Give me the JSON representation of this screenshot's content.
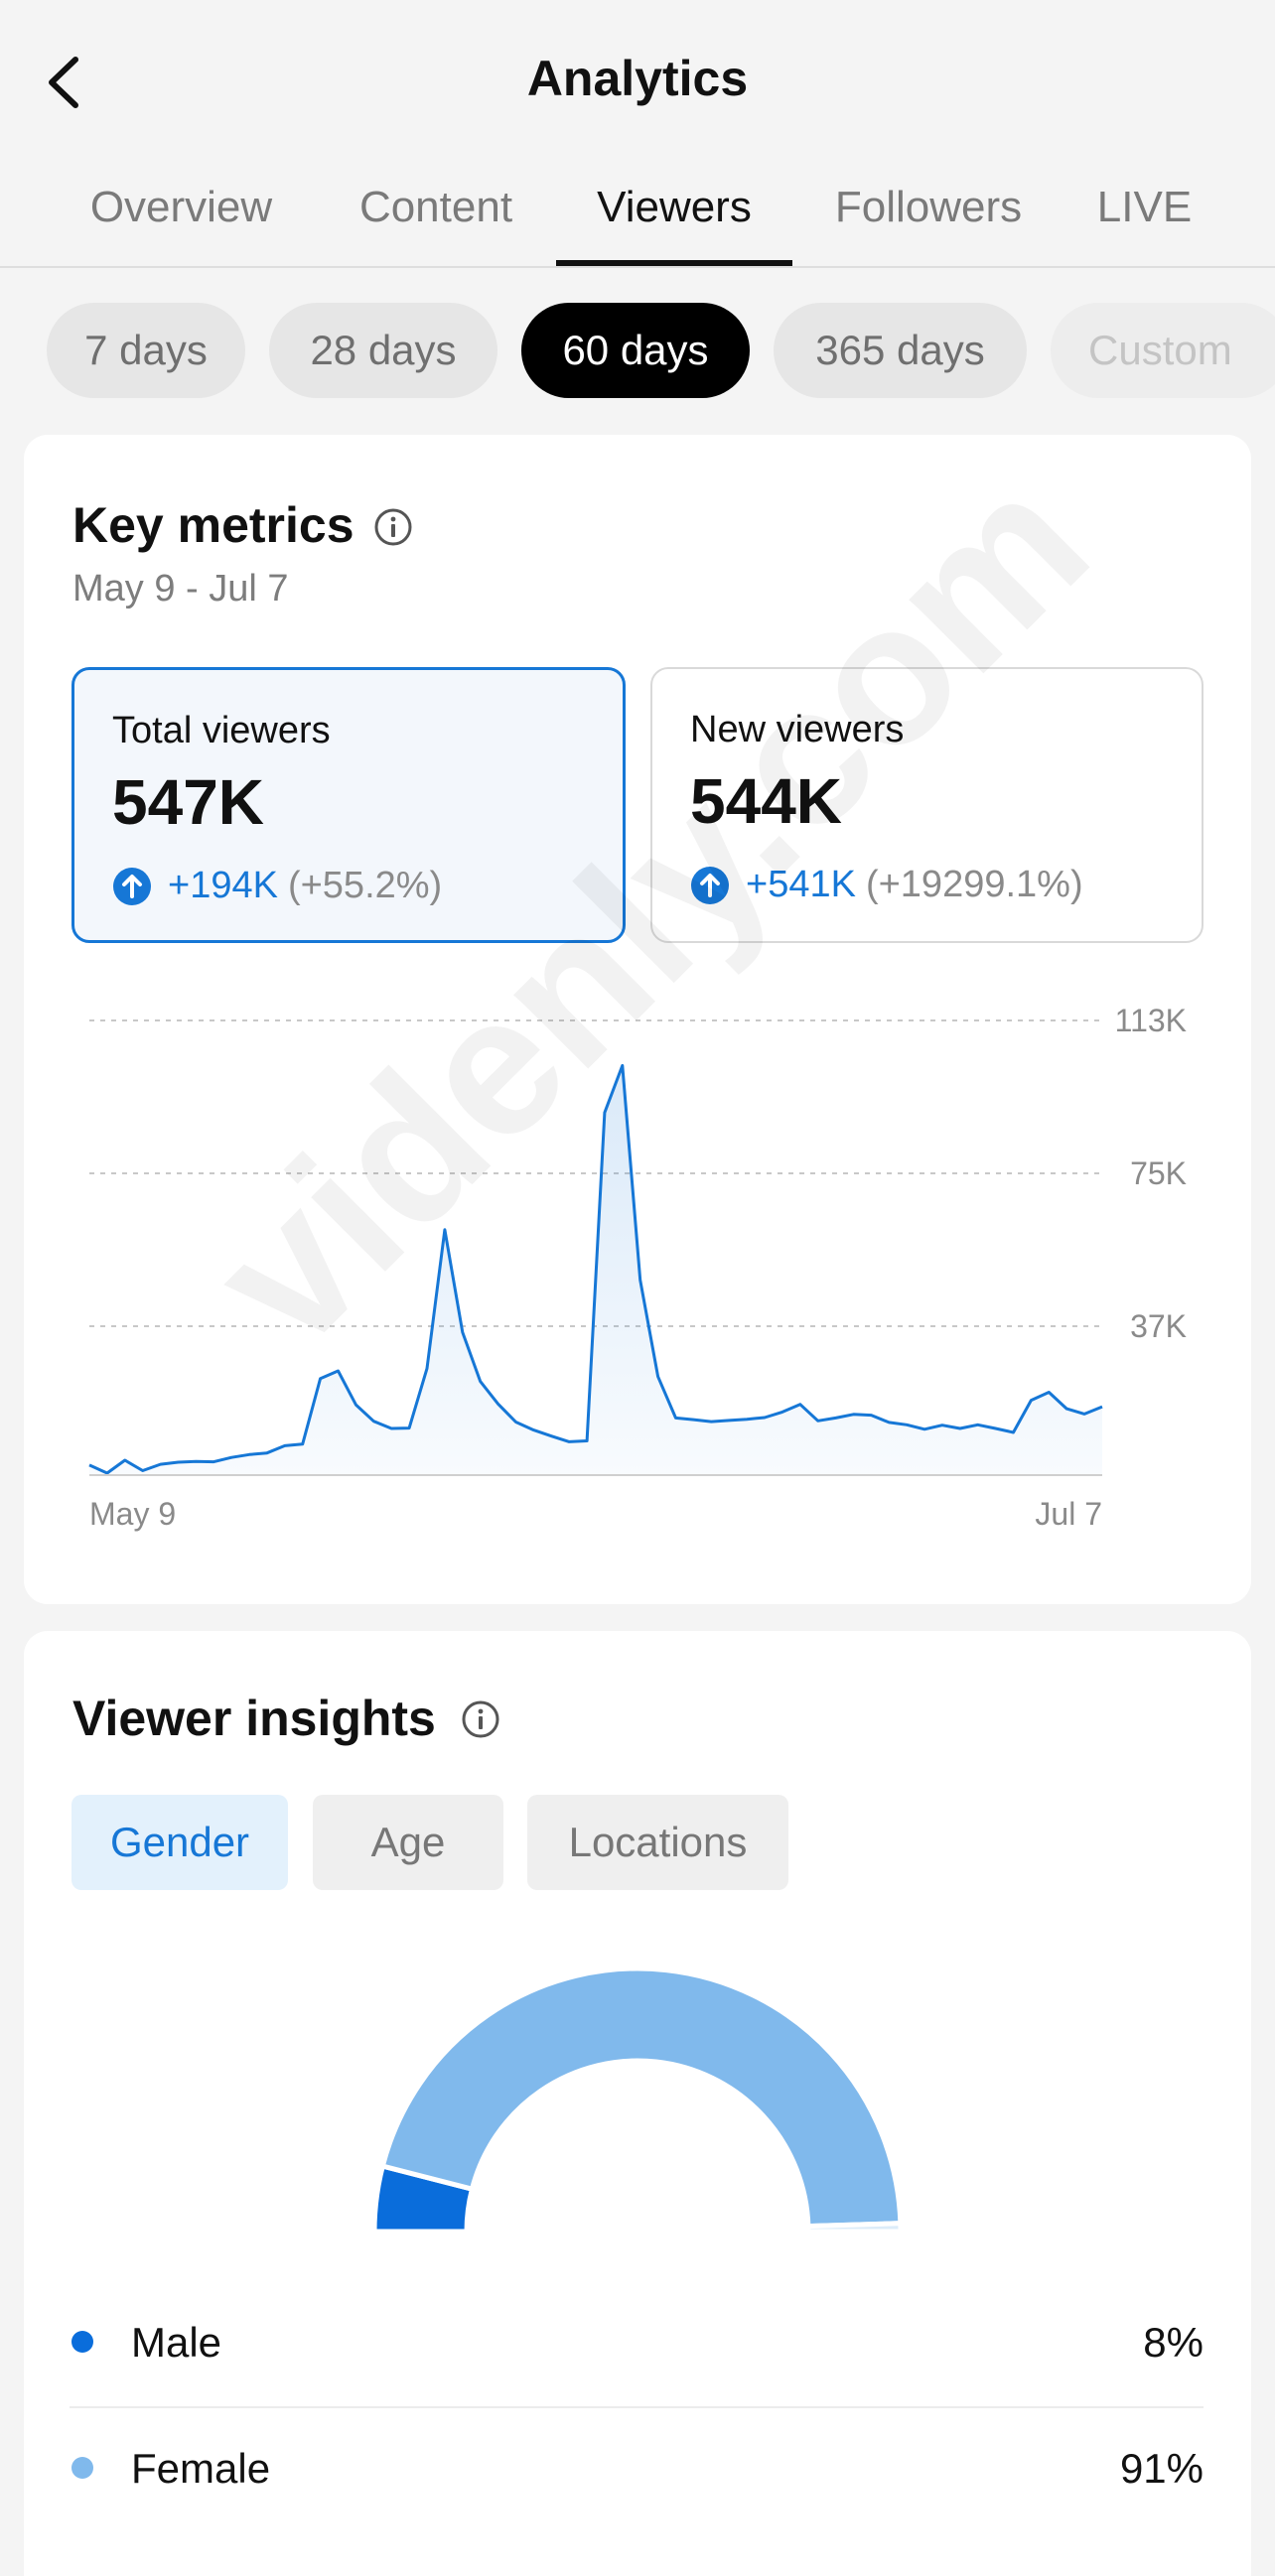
{
  "header": {
    "title": "Analytics",
    "back_icon": "chevron-left-icon"
  },
  "tabs": [
    {
      "label": "Overview",
      "active": false
    },
    {
      "label": "Content",
      "active": false
    },
    {
      "label": "Viewers",
      "active": true
    },
    {
      "label": "Followers",
      "active": false
    },
    {
      "label": "LIVE",
      "active": false
    }
  ],
  "ranges": [
    {
      "label": "7 days",
      "active": false
    },
    {
      "label": "28 days",
      "active": false
    },
    {
      "label": "60 days",
      "active": true
    },
    {
      "label": "365 days",
      "active": false
    },
    {
      "label": "Custom",
      "active": false
    }
  ],
  "key_metrics": {
    "title": "Key metrics",
    "date_range": "May 9 - Jul 7",
    "metrics": [
      {
        "label": "Total viewers",
        "value": "547K",
        "change": "+194K",
        "change_pct": "(+55.2%)",
        "selected": true
      },
      {
        "label": "New viewers",
        "value": "544K",
        "change": "+541K",
        "change_pct": "(+19299.1%)",
        "selected": false
      }
    ]
  },
  "chart_data": {
    "type": "area",
    "series": [
      {
        "values": [
          2500,
          500,
          3700,
          1100,
          2700,
          3200,
          3400,
          3300,
          4400,
          5100,
          5500,
          7300,
          7700,
          24000,
          25900,
          17500,
          13400,
          11600,
          11700,
          26500,
          61000,
          35500,
          23300,
          17700,
          13200,
          11200,
          9700,
          8300,
          8500,
          90100,
          101800,
          48500,
          24500,
          14200,
          13800,
          13300,
          13600,
          13900,
          14300,
          15700,
          17600,
          13500,
          14200,
          15100,
          14900,
          13100,
          12500,
          11400,
          12400,
          11600,
          12500,
          11600,
          10600,
          18600,
          20600,
          16500,
          15200,
          17000
        ]
      }
    ],
    "x_ticks": [
      "May 9",
      "Jul 7"
    ],
    "y_ticks": [
      "37K",
      "75K",
      "113K"
    ],
    "y_tick_values": [
      37000,
      75000,
      113000
    ],
    "ylim": [
      0,
      113000
    ],
    "grid": true,
    "color": "#1677d6"
  },
  "viewer_insights": {
    "title": "Viewer insights",
    "tabs": [
      {
        "label": "Gender",
        "active": true
      },
      {
        "label": "Age",
        "active": false
      },
      {
        "label": "Locations",
        "active": false
      }
    ],
    "gender": [
      {
        "label": "Male",
        "value": "8%",
        "fraction": 0.08,
        "color": "#0a6ddb"
      },
      {
        "label": "Female",
        "value": "91%",
        "fraction": 0.91,
        "color": "#80b9ec"
      },
      {
        "label": "",
        "value": "",
        "fraction": 0.01,
        "color": "#dcecf9"
      }
    ]
  },
  "watermark": "videnly.com",
  "colors": {
    "accent": "#1677d6",
    "background": "#f4f4f4",
    "card": "#ffffff"
  }
}
